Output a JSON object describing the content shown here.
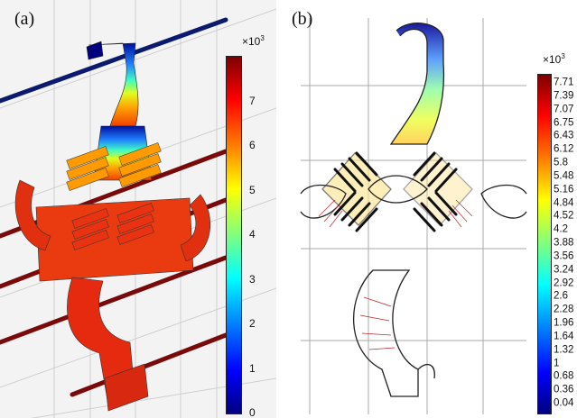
{
  "panel_a": {
    "label": "(a)",
    "multiplier_base": "×10",
    "multiplier_exp": "3",
    "ticks": [
      "0",
      "1",
      "2",
      "3",
      "4",
      "5",
      "6",
      "7"
    ],
    "colorbar_max": 8
  },
  "panel_b": {
    "label": "(b)",
    "multiplier_base": "×10",
    "multiplier_exp": "3",
    "ticks": [
      "7.71",
      "7.39",
      "7.07",
      "6.75",
      "6.43",
      "6.12",
      "5.8",
      "5.48",
      "5.16",
      "4.84",
      "4.52",
      "4.2",
      "3.88",
      "3.56",
      "3.24",
      "2.92",
      "2.6",
      "2.28",
      "1.96",
      "1.64",
      "1.32",
      "1",
      "0.68",
      "0.36",
      "0.04"
    ]
  },
  "colors": {
    "low": "#00007f",
    "mid": "#3fff3f",
    "high": "#7f0000",
    "background_a": "#f3f3f3",
    "conductor_line": "#0b1a6e"
  }
}
